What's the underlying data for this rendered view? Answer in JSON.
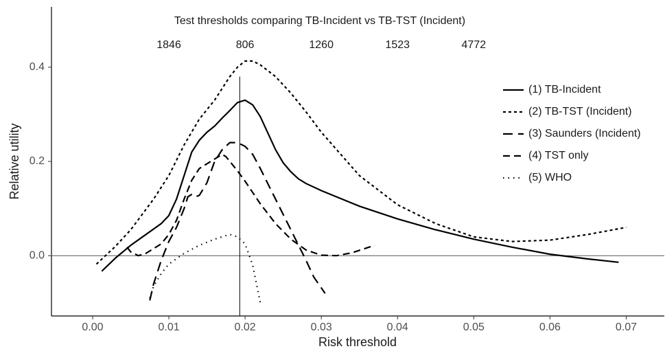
{
  "chart_data": {
    "type": "line",
    "annotation": "Test thresholds comparing TB-Incident vs TB-TST (Incident)",
    "threshold_labels": {
      "x": [
        0.01,
        0.02,
        0.03,
        0.04,
        0.05
      ],
      "labels": [
        1846,
        806,
        1260,
        1523,
        4772
      ]
    },
    "x_label": "Risk threshold",
    "y_label": "Relative utility",
    "xlim": [
      -0.0054,
      0.075
    ],
    "ylim": [
      -0.128,
      0.528
    ],
    "xticks": [
      {
        "value": 0,
        "label": "0.00"
      },
      0.01,
      0.02,
      0.03,
      0.04,
      0.05,
      0.06,
      0.07
    ],
    "yticks": [
      {
        "value": 0,
        "label": "0.0"
      },
      0.2,
      0.4
    ],
    "vline": 0.0193,
    "hline": 0,
    "legend": "right",
    "series": [
      {
        "name": "(1) TB-Incident",
        "color": "#000000",
        "dash": "solid",
        "x": [
          0.0012,
          0.003,
          0.005,
          0.007,
          0.009,
          0.01,
          0.011,
          0.012,
          0.013,
          0.014,
          0.015,
          0.016,
          0.017,
          0.018,
          0.019,
          0.02,
          0.021,
          0.022,
          0.023,
          0.024,
          0.025,
          0.026,
          0.027,
          0.028,
          0.03,
          0.035,
          0.04,
          0.045,
          0.05,
          0.055,
          0.06,
          0.065,
          0.069
        ],
        "values": [
          -0.033,
          -0.005,
          0.022,
          0.045,
          0.068,
          0.085,
          0.12,
          0.17,
          0.22,
          0.245,
          0.262,
          0.275,
          0.292,
          0.308,
          0.325,
          0.33,
          0.32,
          0.295,
          0.26,
          0.225,
          0.197,
          0.178,
          0.163,
          0.153,
          0.138,
          0.105,
          0.078,
          0.055,
          0.035,
          0.018,
          0.003,
          -0.007,
          -0.014
        ]
      },
      {
        "name": "(2) TB-TST (Incident)",
        "color": "#000000",
        "dash": "short",
        "x": [
          0.0005,
          0.003,
          0.005,
          0.008,
          0.01,
          0.012,
          0.014,
          0.016,
          0.018,
          0.019,
          0.02,
          0.021,
          0.022,
          0.024,
          0.026,
          0.028,
          0.03,
          0.035,
          0.04,
          0.045,
          0.05,
          0.055,
          0.06,
          0.065,
          0.07
        ],
        "values": [
          -0.018,
          0.02,
          0.055,
          0.12,
          0.17,
          0.235,
          0.29,
          0.33,
          0.38,
          0.4,
          0.413,
          0.413,
          0.405,
          0.38,
          0.345,
          0.305,
          0.262,
          0.17,
          0.108,
          0.068,
          0.04,
          0.03,
          0.033,
          0.045,
          0.06
        ]
      },
      {
        "name": "(3) Saunders (Incident)",
        "color": "#000000",
        "dash": "long",
        "x": [
          0.0075,
          0.008,
          0.009,
          0.01,
          0.011,
          0.012,
          0.0125,
          0.013,
          0.0135,
          0.014,
          0.015,
          0.016,
          0.017,
          0.018,
          0.019,
          0.02,
          0.021,
          0.022,
          0.024,
          0.026,
          0.028,
          0.029,
          0.0305
        ],
        "values": [
          -0.095,
          -0.06,
          -0.01,
          0.03,
          0.06,
          0.1,
          0.125,
          0.13,
          0.125,
          0.128,
          0.155,
          0.2,
          0.225,
          0.24,
          0.24,
          0.232,
          0.215,
          0.185,
          0.12,
          0.055,
          -0.01,
          -0.045,
          -0.08
        ]
      },
      {
        "name": "(4) TST only",
        "color": "#000000",
        "dash": "medium",
        "x": [
          0.0045,
          0.005,
          0.006,
          0.007,
          0.008,
          0.009,
          0.01,
          0.011,
          0.012,
          0.013,
          0.014,
          0.015,
          0.016,
          0.017,
          0.0175,
          0.018,
          0.019,
          0.02,
          0.022,
          0.024,
          0.026,
          0.028,
          0.03,
          0.032,
          0.034,
          0.037
        ],
        "values": [
          0.018,
          0.008,
          0.0,
          0.005,
          0.015,
          0.025,
          0.045,
          0.075,
          0.12,
          0.16,
          0.185,
          0.195,
          0.205,
          0.215,
          0.21,
          0.2,
          0.18,
          0.158,
          0.11,
          0.068,
          0.035,
          0.012,
          0.001,
          0.0,
          0.006,
          0.022
        ]
      },
      {
        "name": "(5) WHO",
        "color": "#000000",
        "dash": "dot",
        "x": [
          0.0075,
          0.008,
          0.009,
          0.01,
          0.012,
          0.014,
          0.016,
          0.018,
          0.019,
          0.02,
          0.021,
          0.022
        ],
        "values": [
          -0.09,
          -0.065,
          -0.038,
          -0.018,
          0.005,
          0.022,
          0.035,
          0.045,
          0.04,
          0.025,
          -0.02,
          -0.1
        ]
      }
    ]
  }
}
